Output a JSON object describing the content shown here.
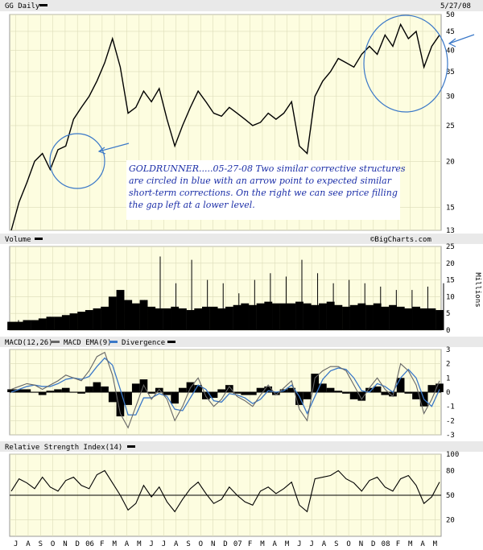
{
  "header": {
    "title": "GG Daily",
    "date": "5/27/08"
  },
  "source": "©BigCharts.com",
  "annotation": {
    "lines": [
      "GOLDRUNNER.....05-27-08  Two similar corrective structures",
      "are circled in blue with an arrow point to expected similar",
      "short-term corrections.  On the right we can see price filling",
      "the gap left at a lower level."
    ]
  },
  "colors": {
    "panel_bg": "#fdfde0",
    "grid": "#d8d8b4",
    "price": "#000000",
    "macd": "#666666",
    "macd_ema": "#3a78c8",
    "divergence": "#000000",
    "annotation": "#1c2fa8",
    "circle": "#3a78c8"
  },
  "chart_data": [
    {
      "type": "line",
      "panel": "price",
      "title": "GG Daily",
      "y_ticks": [
        13,
        15,
        20,
        25,
        30,
        35,
        40,
        45,
        50
      ],
      "ylim": [
        13,
        50
      ],
      "y_scale": "log",
      "x_labels": [
        "J",
        "A",
        "S",
        "O",
        "N",
        "D",
        "06",
        "F",
        "M",
        "A",
        "M",
        "J",
        "J",
        "A",
        "S",
        "O",
        "N",
        "D",
        "07",
        "F",
        "M",
        "A",
        "M",
        "J",
        "J",
        "A",
        "S",
        "O",
        "N",
        "D",
        "08",
        "F",
        "M",
        "A",
        "M"
      ],
      "series": [
        {
          "values": [
            13,
            15.5,
            17.5,
            20,
            21,
            19,
            21.5,
            22,
            26,
            28,
            30,
            33,
            37,
            43,
            36,
            27,
            28,
            31,
            29,
            31.5,
            26,
            22,
            25,
            28,
            31,
            29,
            27,
            26.5,
            28,
            27,
            26,
            25,
            25.5,
            27,
            26,
            27,
            29,
            22,
            21,
            30,
            33,
            35,
            38,
            37,
            36,
            39,
            41,
            39,
            44,
            41,
            47,
            43,
            45,
            36,
            41,
            44
          ]
        }
      ],
      "annotations": [
        "circle-left",
        "circle-right",
        "arrow-left",
        "arrow-right"
      ]
    },
    {
      "type": "bar",
      "panel": "volume",
      "title": "Volume",
      "ylabel": "Millions",
      "y_ticks": [
        0,
        5,
        10,
        15,
        20,
        25
      ],
      "ylim": [
        0,
        25
      ],
      "values": [
        2.5,
        2.5,
        3,
        3,
        3.5,
        4,
        4,
        4.5,
        5,
        5.5,
        6,
        6.5,
        7,
        10,
        12,
        9,
        8,
        9,
        7,
        6.5,
        6.5,
        7,
        6.5,
        6,
        6.5,
        7,
        7,
        6.5,
        7,
        7.5,
        8,
        7.5,
        8,
        8.5,
        8,
        8,
        8,
        8.5,
        8,
        7.5,
        8,
        8.5,
        7.5,
        7,
        7.5,
        8,
        7.5,
        8,
        7,
        7.5,
        7,
        6.5,
        7,
        6.5,
        6.5,
        6
      ],
      "spikes": [
        3,
        3,
        4,
        4,
        5,
        6,
        7,
        8,
        9,
        22,
        14,
        21,
        15,
        14,
        11,
        15,
        17,
        16,
        21,
        17,
        14,
        15,
        14,
        13,
        12,
        12,
        13,
        14
      ]
    },
    {
      "type": "line",
      "panel": "macd",
      "title": "MACD(12,26)",
      "legend": [
        "MACD(12,26)",
        "MACD EMA(9)",
        "Divergence"
      ],
      "y_ticks": [
        -3,
        -2,
        -1,
        0,
        1,
        2,
        3
      ],
      "ylim": [
        -3,
        3
      ],
      "series": [
        {
          "name": "MACD(12,26)",
          "values": [
            0.2,
            0.4,
            0.6,
            0.5,
            0.2,
            0.5,
            0.8,
            1.2,
            1.0,
            0.8,
            1.5,
            2.5,
            2.8,
            1.2,
            -1.5,
            -2.5,
            -1.0,
            0.5,
            -0.5,
            0.2,
            -0.5,
            -2.0,
            -1.0,
            0.3,
            1.0,
            -0.3,
            -1.0,
            -0.5,
            0.4,
            -0.3,
            -0.6,
            -1.0,
            -0.2,
            0.5,
            -0.2,
            0.3,
            0.8,
            -1.2,
            -2.0,
            1.0,
            1.5,
            1.8,
            1.8,
            1.5,
            0.5,
            -0.5,
            0.3,
            1.0,
            0.2,
            -0.3,
            2.0,
            1.5,
            0.5,
            -1.5,
            -0.5,
            0.8
          ]
        },
        {
          "name": "MACD EMA(9)",
          "values": [
            0.0,
            0.2,
            0.4,
            0.5,
            0.4,
            0.4,
            0.6,
            0.9,
            1.0,
            0.9,
            1.1,
            1.8,
            2.4,
            1.9,
            0.2,
            -1.6,
            -1.6,
            -0.4,
            -0.4,
            -0.1,
            -0.3,
            -1.2,
            -1.3,
            -0.4,
            0.5,
            0.2,
            -0.6,
            -0.7,
            -0.1,
            -0.2,
            -0.4,
            -0.8,
            -0.5,
            0.1,
            0.0,
            0.1,
            0.5,
            -0.3,
            -1.5,
            -0.3,
            0.9,
            1.5,
            1.7,
            1.6,
            1.0,
            0.1,
            0.0,
            0.6,
            0.4,
            0.0,
            1.0,
            1.6,
            1.0,
            -0.5,
            -1.0,
            0.2
          ]
        }
      ]
    },
    {
      "type": "line",
      "panel": "rsi",
      "title": "Relative Strength Index(14)",
      "y_ticks": [
        20,
        50,
        80,
        100
      ],
      "ylim": [
        0,
        100
      ],
      "series": [
        {
          "values": [
            55,
            70,
            65,
            58,
            72,
            60,
            55,
            68,
            72,
            62,
            58,
            75,
            80,
            65,
            50,
            32,
            40,
            62,
            48,
            60,
            42,
            30,
            45,
            58,
            66,
            52,
            40,
            45,
            60,
            50,
            42,
            38,
            55,
            60,
            52,
            58,
            66,
            38,
            30,
            70,
            72,
            74,
            80,
            70,
            65,
            55,
            68,
            72,
            60,
            55,
            70,
            74,
            62,
            40,
            48,
            66
          ]
        }
      ]
    }
  ]
}
